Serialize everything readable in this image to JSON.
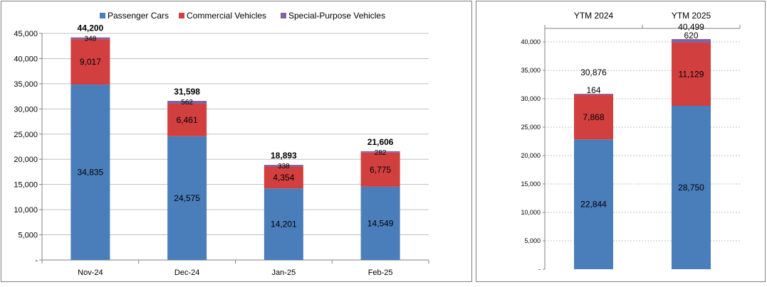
{
  "colors": {
    "passenger": "#4a7ebb",
    "commercial": "#d23f3f",
    "special": "#8064a2",
    "grid": "#c0c0c0",
    "axis": "#808080"
  },
  "chart_data": [
    {
      "type": "bar",
      "stacked": true,
      "title": "",
      "xlabel": "",
      "ylabel": "",
      "legend": "top",
      "categories": [
        "Nov-24",
        "Dec-24",
        "Jan-25",
        "Feb-25"
      ],
      "series": [
        {
          "name": "Passenger Cars",
          "values": [
            34835,
            24575,
            14201,
            14549
          ]
        },
        {
          "name": "Commercial Vehicles",
          "values": [
            9017,
            6461,
            4354,
            6775
          ]
        },
        {
          "name": "Special-Purpose Vehicles",
          "values": [
            348,
            562,
            338,
            282
          ]
        }
      ],
      "value_labels": [
        [
          "34,835",
          "24,575",
          "14,201",
          "14,549"
        ],
        [
          "9,017",
          "6,461",
          "4,354",
          "6,775"
        ],
        [
          "348",
          "562",
          "338",
          "282"
        ]
      ],
      "totals": [
        44200,
        31598,
        18893,
        21606
      ],
      "total_labels": [
        "44,200",
        "31,598",
        "18,893",
        "21,606"
      ],
      "ylim": [
        0,
        45000
      ],
      "yticks": [
        0,
        5000,
        10000,
        15000,
        20000,
        25000,
        30000,
        35000,
        40000,
        45000
      ],
      "ytick_labels": [
        "-",
        "5,000",
        "10,000",
        "15,000",
        "20,000",
        "25,000",
        "30,000",
        "35,000",
        "40,000",
        "45,000"
      ],
      "grid": true
    },
    {
      "type": "bar",
      "stacked": true,
      "title": "",
      "xlabel": "",
      "ylabel": "",
      "categories": [
        "YTM 2024",
        "YTM 2025"
      ],
      "series": [
        {
          "name": "Passenger Cars",
          "values": [
            22844,
            28750
          ]
        },
        {
          "name": "Commercial Vehicles",
          "values": [
            7868,
            11129
          ]
        },
        {
          "name": "Special-Purpose Vehicles",
          "values": [
            164,
            620
          ]
        }
      ],
      "value_labels": [
        [
          "22,844",
          "28,750"
        ],
        [
          "7,868",
          "11,129"
        ],
        [
          "164",
          "620"
        ]
      ],
      "totals": [
        30876,
        40499
      ],
      "total_labels": [
        "30,876",
        "40,499"
      ],
      "ylim": [
        0,
        40000
      ],
      "yticks": [
        0,
        5000,
        10000,
        15000,
        20000,
        25000,
        30000,
        35000,
        40000
      ],
      "ytick_labels": [
        "-",
        "5,000",
        "10,000",
        "15,000",
        "20,000",
        "25,000",
        "30,000",
        "35,000",
        "40,000"
      ],
      "grid": true
    }
  ]
}
